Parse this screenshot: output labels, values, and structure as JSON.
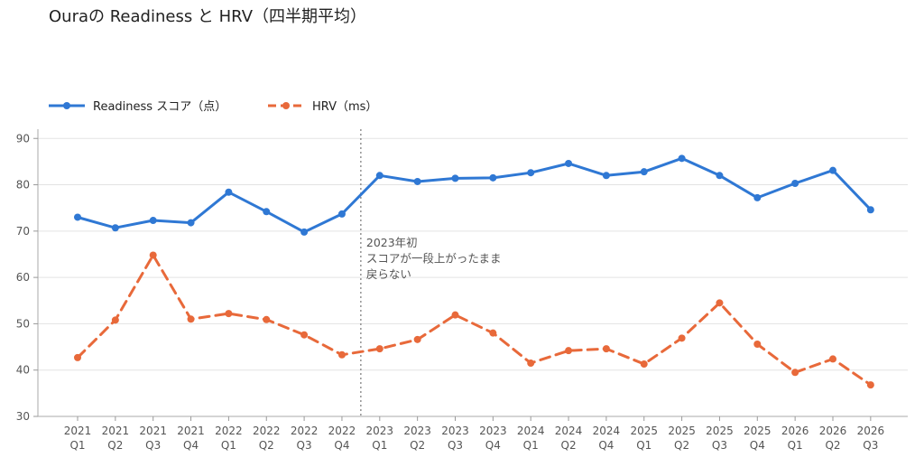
{
  "chart_data": {
    "type": "line",
    "title": "Ouraの Readiness と HRV（四半期平均）",
    "categories": [
      [
        "2021",
        "Q1"
      ],
      [
        "2021",
        "Q2"
      ],
      [
        "2021",
        "Q3"
      ],
      [
        "2021",
        "Q4"
      ],
      [
        "2022",
        "Q1"
      ],
      [
        "2022",
        "Q2"
      ],
      [
        "2022",
        "Q3"
      ],
      [
        "2022",
        "Q4"
      ],
      [
        "2023",
        "Q1"
      ],
      [
        "2023",
        "Q2"
      ],
      [
        "2023",
        "Q3"
      ],
      [
        "2023",
        "Q4"
      ],
      [
        "2024",
        "Q1"
      ],
      [
        "2024",
        "Q2"
      ],
      [
        "2024",
        "Q4"
      ],
      [
        "2025",
        "Q1"
      ],
      [
        "2025",
        "Q2"
      ],
      [
        "2025",
        "Q3"
      ],
      [
        "2025",
        "Q4"
      ],
      [
        "2026",
        "Q1"
      ],
      [
        "2026",
        "Q2"
      ],
      [
        "2026",
        "Q3"
      ]
    ],
    "series": [
      {
        "name": "Readiness スコア（点）",
        "color": "#2f78d4",
        "style": "solid",
        "values": [
          73.0,
          70.7,
          72.3,
          71.8,
          78.4,
          74.2,
          69.8,
          73.7,
          82.0,
          80.7,
          81.4,
          81.5,
          82.6,
          84.6,
          82.0,
          82.8,
          85.7,
          82.0,
          77.2,
          80.3,
          83.1,
          74.6
        ]
      },
      {
        "name": "HRV（ms）",
        "color": "#e8693a",
        "style": "dashed",
        "values": [
          42.7,
          50.8,
          64.8,
          51.0,
          52.2,
          50.9,
          47.6,
          43.3,
          44.6,
          46.6,
          51.9,
          48.0,
          41.5,
          44.2,
          44.6,
          41.3,
          46.9,
          54.5,
          45.6,
          39.5,
          42.4,
          36.8
        ]
      }
    ],
    "ylim": [
      30,
      92
    ],
    "yticks": [
      30,
      40,
      50,
      60,
      70,
      80,
      90
    ],
    "grid": "horizontal",
    "legend": "top-left",
    "annotation": {
      "lines": [
        "2023年初",
        "スコアが一段上がったまま",
        "戻らない"
      ],
      "x_between": [
        "2022 Q4",
        "2023 Q1"
      ]
    }
  }
}
